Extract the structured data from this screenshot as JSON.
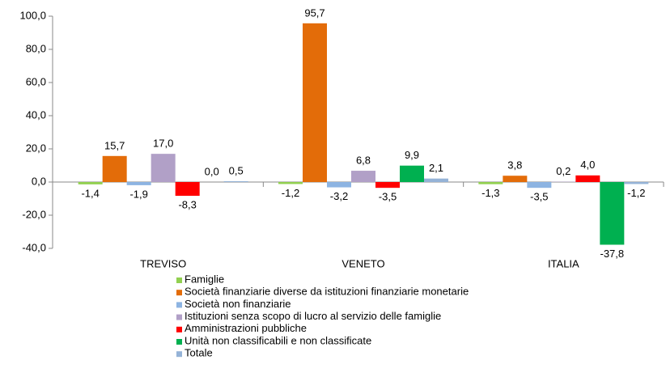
{
  "chart_data": {
    "type": "bar",
    "categories": [
      "TREVISO",
      "VENETO",
      "ITALIA"
    ],
    "series": [
      {
        "name": "Famiglie",
        "color": "#92d050",
        "values": [
          -1.4,
          -1.2,
          -1.3
        ],
        "value_labels": [
          "-1,4",
          "-1,2",
          "-1,3"
        ]
      },
      {
        "name": "Società finanziarie diverse da istituzioni finanziarie monetarie",
        "color": "#e36c09",
        "values": [
          15.7,
          95.7,
          3.8
        ],
        "value_labels": [
          "15,7",
          "95,7",
          "3,8"
        ]
      },
      {
        "name": "Società non finanziarie",
        "color": "#8db4e2",
        "values": [
          -1.9,
          -3.2,
          -3.5
        ],
        "value_labels": [
          "-1,9",
          "-3,2",
          "-3,5"
        ]
      },
      {
        "name": "Istituzioni senza scopo di lucro al servizio delle famiglie",
        "color": "#b1a0c7",
        "values": [
          17.0,
          6.8,
          0.2
        ],
        "value_labels": [
          "17,0",
          "6,8",
          "0,2"
        ]
      },
      {
        "name": "Amministrazioni pubbliche",
        "color": "#ff0000",
        "values": [
          -8.3,
          -3.5,
          4.0
        ],
        "value_labels": [
          "-8,3",
          "-3,5",
          "4,0"
        ]
      },
      {
        "name": "Unità non classificabili e non classificate",
        "color": "#00b050",
        "values": [
          0.0,
          9.9,
          -37.8
        ],
        "value_labels": [
          "0,0",
          "9,9",
          "-37,8"
        ]
      },
      {
        "name": "Totale",
        "color": "#95b3d7",
        "values": [
          0.5,
          2.1,
          -1.2
        ],
        "value_labels": [
          "0,5",
          "2,1",
          "-1,2"
        ]
      }
    ],
    "ylim": [
      -40,
      100
    ],
    "yticks": [
      {
        "value": -40,
        "label": "-40,0"
      },
      {
        "value": -20,
        "label": "-20,0"
      },
      {
        "value": 0,
        "label": "0,0"
      },
      {
        "value": 20,
        "label": "20,0"
      },
      {
        "value": 40,
        "label": "40,0"
      },
      {
        "value": 60,
        "label": "60,0"
      },
      {
        "value": 80,
        "label": "80,0"
      },
      {
        "value": 100,
        "label": "100,0"
      }
    ],
    "legend": "bottom"
  }
}
